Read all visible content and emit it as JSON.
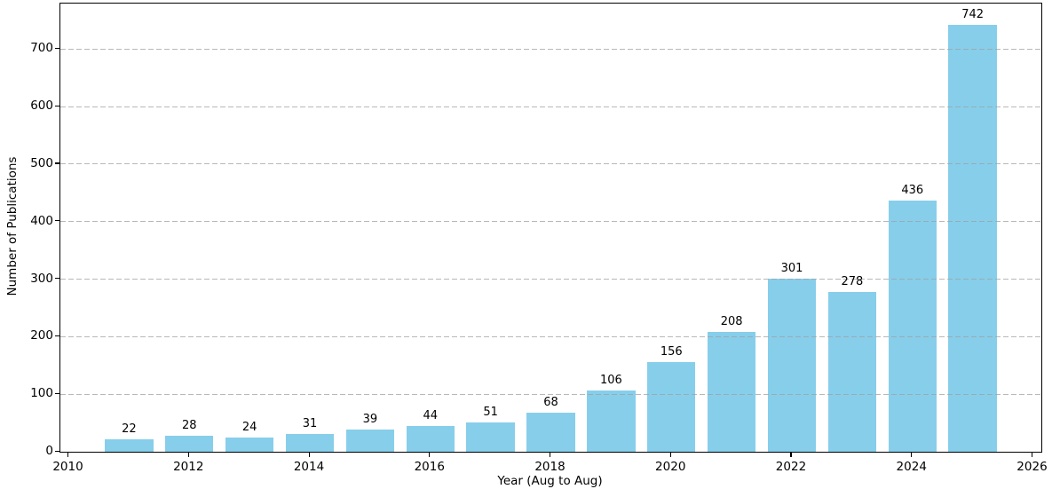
{
  "chart_data": {
    "type": "bar",
    "title": "",
    "xlabel": "Year (Aug to Aug)",
    "ylabel": "Number of Publications",
    "x": [
      2011,
      2012,
      2013,
      2014,
      2015,
      2016,
      2017,
      2018,
      2019,
      2020,
      2021,
      2022,
      2023,
      2024,
      2025
    ],
    "values": [
      22,
      28,
      24,
      31,
      39,
      44,
      51,
      68,
      106,
      156,
      208,
      301,
      278,
      436,
      742
    ],
    "bar_labels": [
      "22",
      "28",
      "24",
      "31",
      "39",
      "44",
      "51",
      "68",
      "106",
      "156",
      "208",
      "301",
      "278",
      "436",
      "742"
    ],
    "xticks": [
      2010,
      2012,
      2014,
      2016,
      2018,
      2020,
      2022,
      2024,
      2026
    ],
    "yticks": [
      0,
      100,
      200,
      300,
      400,
      500,
      600,
      700
    ],
    "xlim": [
      2009.86,
      2026.14
    ],
    "ylim": [
      0,
      779.1
    ],
    "bar_width_years": 0.8,
    "bar_color": "#87CEEB",
    "grid": "horizontal-dashed",
    "grid_color": "#a0a0a0",
    "spine_color": "#000000",
    "legend": "none"
  }
}
